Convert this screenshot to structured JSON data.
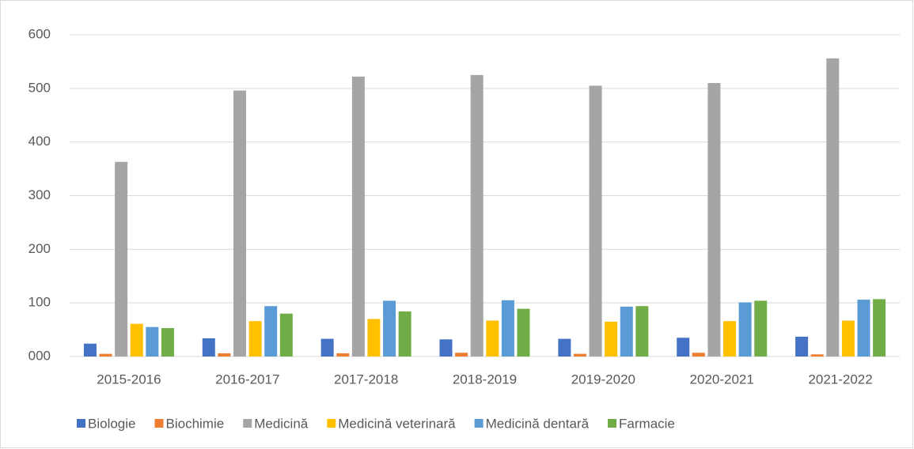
{
  "chart_data": {
    "type": "bar",
    "categories": [
      "2015-2016",
      "2016-2017",
      "2017-2018",
      "2018-2019",
      "2019-2020",
      "2020-2021",
      "2021-2022"
    ],
    "series": [
      {
        "name": "Biologie",
        "color": "#4472c4",
        "values": [
          24,
          34,
          33,
          32,
          33,
          35,
          37
        ]
      },
      {
        "name": "Biochimie",
        "color": "#ed7d31",
        "values": [
          5,
          6,
          6,
          7,
          5,
          7,
          4
        ]
      },
      {
        "name": "Medicină",
        "color": "#a5a5a5",
        "values": [
          363,
          496,
          522,
          525,
          505,
          510,
          556
        ]
      },
      {
        "name": "Medicină veterinară",
        "color": "#ffc000",
        "values": [
          61,
          66,
          70,
          67,
          65,
          66,
          67
        ]
      },
      {
        "name": "Medicină dentară",
        "color": "#5b9bd5",
        "values": [
          55,
          94,
          104,
          105,
          93,
          101,
          106
        ]
      },
      {
        "name": "Farmacie",
        "color": "#70ad47",
        "values": [
          53,
          80,
          84,
          89,
          94,
          104,
          107
        ]
      }
    ],
    "ylim": [
      0,
      600
    ],
    "yticks": [
      {
        "value": 0,
        "label": "000"
      },
      100,
      200,
      300,
      400,
      500,
      600
    ],
    "grid": true,
    "legend": "bottom"
  }
}
